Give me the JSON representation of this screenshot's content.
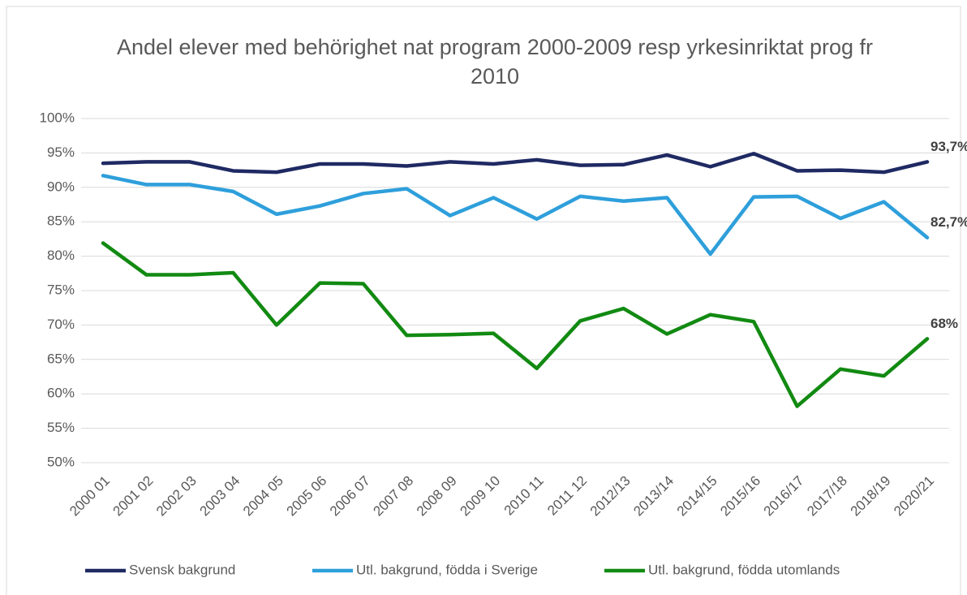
{
  "chart_data": {
    "type": "line",
    "title": "Andel elever med behörighet nat program 2000-2009 resp yrkesinriktat prog fr 2010",
    "categories": [
      "2000 01",
      "2001 02",
      "2002 03",
      "2003 04",
      "2004 05",
      "2005 06",
      "2006 07",
      "2007 08",
      "2008 09",
      "2009 10",
      "2010 11",
      "2011 12",
      "2012/13",
      "2013/14",
      "2014/15",
      "2015/16",
      "2016/17",
      "2017/18",
      "2018/19",
      "2020/21"
    ],
    "series": [
      {
        "name": "Svensk bakgrund",
        "color": "#1f2a63",
        "values": [
          93.5,
          93.7,
          93.7,
          92.4,
          92.2,
          93.4,
          93.4,
          93.1,
          93.7,
          93.4,
          94.0,
          93.2,
          93.3,
          94.7,
          93.0,
          94.9,
          92.4,
          92.5,
          92.2,
          93.7
        ],
        "value_labels": [
          null,
          null,
          null,
          null,
          null,
          null,
          null,
          null,
          null,
          null,
          null,
          null,
          null,
          null,
          null,
          null,
          null,
          null,
          null,
          "93,7%"
        ]
      },
      {
        "name": "Utl. bakgrund, födda i Sverige",
        "color": "#2e9fdb",
        "values": [
          91.7,
          90.4,
          90.4,
          89.4,
          86.1,
          87.3,
          89.1,
          89.8,
          85.9,
          88.5,
          85.4,
          88.7,
          88.0,
          88.5,
          80.3,
          88.6,
          88.7,
          85.5,
          87.9,
          82.7
        ],
        "value_labels": [
          null,
          null,
          null,
          null,
          null,
          null,
          null,
          null,
          null,
          null,
          null,
          null,
          null,
          null,
          null,
          null,
          null,
          null,
          null,
          "82,7%"
        ]
      },
      {
        "name": "Utl. bakgrund, födda utomlands",
        "color": "#128a12",
        "values": [
          81.9,
          77.3,
          77.3,
          77.6,
          70.0,
          76.1,
          76.0,
          68.5,
          68.6,
          68.8,
          63.7,
          70.6,
          72.4,
          68.7,
          71.5,
          70.5,
          58.2,
          63.6,
          62.6,
          68
        ],
        "value_labels": [
          null,
          null,
          null,
          null,
          null,
          null,
          null,
          null,
          null,
          null,
          null,
          null,
          null,
          null,
          null,
          null,
          null,
          null,
          null,
          "68%"
        ]
      }
    ],
    "ylim": [
      50,
      100
    ],
    "yticks": [
      {
        "value": 50,
        "label": "50%"
      },
      {
        "value": 55,
        "label": "55%"
      },
      {
        "value": 60,
        "label": "60%"
      },
      {
        "value": 65,
        "label": "65%"
      },
      {
        "value": 70,
        "label": "70%"
      },
      {
        "value": 75,
        "label": "75%"
      },
      {
        "value": 80,
        "label": "80%"
      },
      {
        "value": 85,
        "label": "85%"
      },
      {
        "value": 90,
        "label": "90%"
      },
      {
        "value": 95,
        "label": "95%"
      },
      {
        "value": 100,
        "label": "100%"
      }
    ],
    "grid": true,
    "legend": "bottom"
  }
}
